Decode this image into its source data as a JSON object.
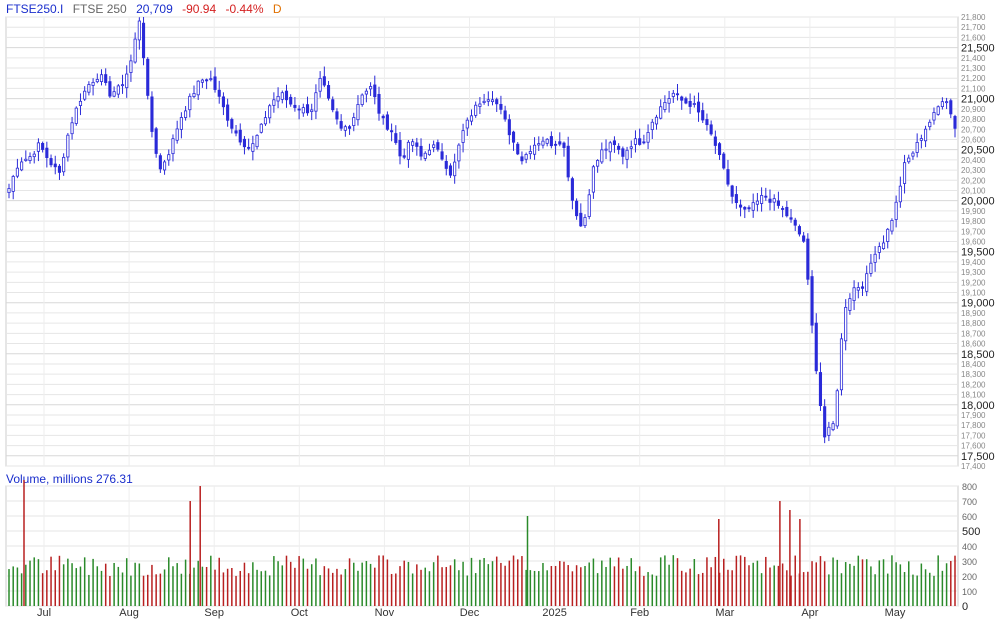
{
  "header": {
    "symbol": "FTSE250.I",
    "name": "FTSE 250",
    "last": "20,709",
    "change": "-90.94",
    "change_pct": "-0.44%",
    "frequency": "D"
  },
  "volume_header": {
    "label": "Volume, millions",
    "value": "276.31"
  },
  "colors": {
    "candle": "#2a2ad8",
    "up_volume": "#2a8a2a",
    "down_volume": "#b82020",
    "grid": "#e6e6e6",
    "axis_text": "#555555"
  },
  "chart_data": [
    {
      "type": "candlestick",
      "x_tick_labels": [
        "Jul",
        "Aug",
        "Sep",
        "Oct",
        "Nov",
        "Dec",
        "2025",
        "Feb",
        "Mar",
        "Apr",
        "May"
      ],
      "y_range": [
        17400,
        21800
      ],
      "y_major_labels": [
        "21,500",
        "21,000",
        "20,500",
        "20,000",
        "19,500",
        "19,000",
        "18,500",
        "18,000",
        "17,500"
      ],
      "y_minor_labels": [
        "21,800",
        "21,700",
        "21,600",
        "21,400",
        "21,300",
        "21,200",
        "21,100",
        "20,900",
        "20,800",
        "20,700",
        "20,600",
        "20,400",
        "20,300",
        "20,200",
        "20,100",
        "19,900",
        "19,800",
        "19,700",
        "19,600",
        "19,400",
        "19,300",
        "19,200",
        "19,100",
        "18,900",
        "18,800",
        "18,700",
        "18,600",
        "18,400",
        "18,300",
        "18,200",
        "18,100",
        "17,900",
        "17,800",
        "17,700",
        "17,600",
        "17,400"
      ],
      "close_path": [
        20120,
        20390,
        20420,
        20550,
        20390,
        20260,
        20710,
        20980,
        21150,
        21240,
        21050,
        21100,
        21310,
        21800,
        20780,
        20300,
        20500,
        20800,
        21000,
        21180,
        21200,
        20980,
        20750,
        20600,
        20500,
        20700,
        20960,
        21050,
        20950,
        20900,
        20880,
        21200,
        20900,
        20700,
        20750,
        21050,
        21110,
        20800,
        20690,
        20400,
        20600,
        20420,
        20550,
        20430,
        20250,
        20650,
        20860,
        21000,
        21030,
        20850,
        20600,
        20400,
        20540,
        20600,
        20560,
        20600,
        20000,
        19700,
        20300,
        20500,
        20550,
        20450,
        20580,
        20580,
        20800,
        20950,
        21050,
        20970,
        20940,
        20780,
        20600,
        20300,
        20000,
        19880,
        19950,
        20050,
        19990,
        19900,
        19760,
        19600,
        18550,
        17680,
        17820,
        18950,
        19150,
        19180,
        19500,
        19620,
        19900,
        20350,
        20500,
        20700,
        20850,
        21050,
        20709
      ],
      "volume_y_range": [
        0,
        800
      ],
      "volume_tick_labels": [
        "800",
        "700",
        "600",
        "500",
        "400",
        "300",
        "200",
        "100",
        "0"
      ],
      "volume_baseline_millions": 270,
      "volume_spikes": [
        {
          "month": "Jul",
          "value": 860
        },
        {
          "month": "Sep",
          "value": 700
        },
        {
          "month": "Sep",
          "value": 800
        },
        {
          "month": "Dec",
          "value": 600
        },
        {
          "month": "Mar",
          "value": 580
        },
        {
          "month": "Apr",
          "value": 700
        },
        {
          "month": "Apr",
          "value": 640
        },
        {
          "month": "Apr",
          "value": 580
        }
      ]
    }
  ]
}
